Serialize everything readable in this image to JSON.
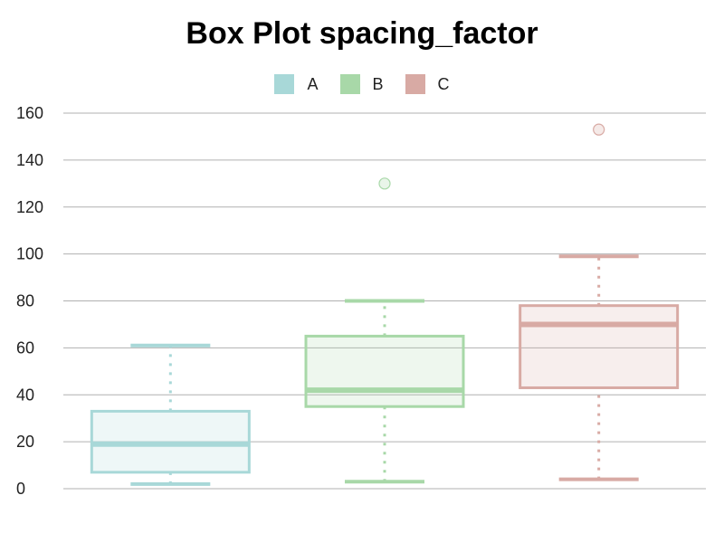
{
  "chart_data": {
    "type": "box",
    "title": "Box Plot spacing_factor",
    "xlabel": "",
    "ylabel": "",
    "ylim": [
      0,
      160
    ],
    "yticks": [
      0,
      20,
      40,
      60,
      80,
      100,
      120,
      140,
      160
    ],
    "grid": true,
    "legend_position": "top-center",
    "series": [
      {
        "name": "A",
        "color": "#a8d8d8",
        "whisker_low": 2,
        "q1": 7,
        "median": 19,
        "q3": 33,
        "whisker_high": 61,
        "outliers": []
      },
      {
        "name": "B",
        "color": "#a8d8a8",
        "whisker_low": 3,
        "q1": 35,
        "median": 42,
        "q3": 65,
        "whisker_high": 80,
        "outliers": [
          130
        ]
      },
      {
        "name": "C",
        "color": "#d8aaa4",
        "whisker_low": 4,
        "q1": 43,
        "median": 70,
        "q3": 78,
        "whisker_high": 99,
        "outliers": [
          153
        ]
      }
    ]
  }
}
